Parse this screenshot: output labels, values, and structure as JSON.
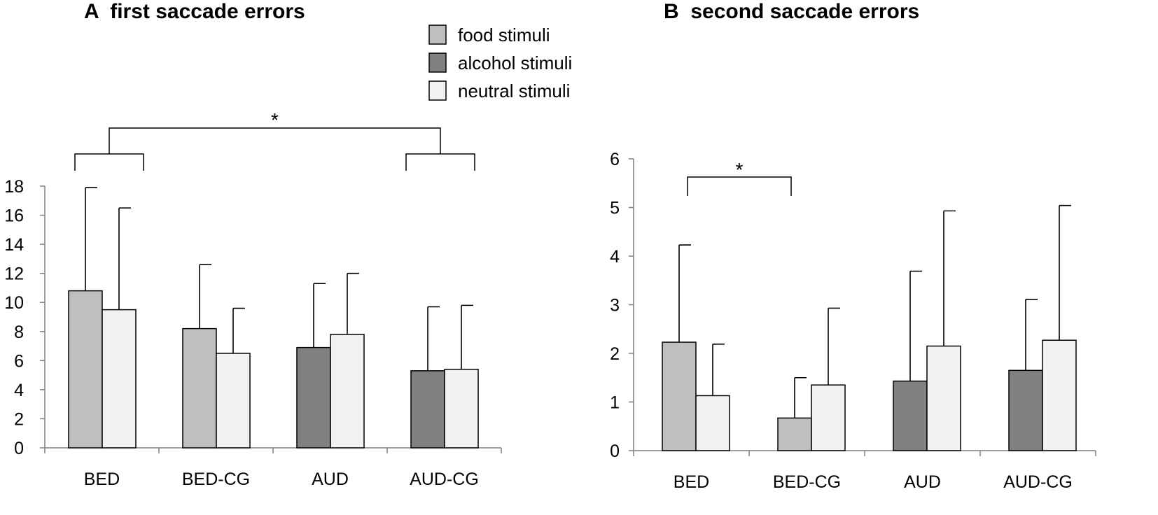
{
  "colors": {
    "food": "#bfbfbf",
    "alcohol": "#808080",
    "neutral": "#f2f2f2"
  },
  "legend": [
    {
      "key": "food",
      "label": "food stimuli"
    },
    {
      "key": "alcohol",
      "label": "alcohol stimuli"
    },
    {
      "key": "neutral",
      "label": "neutral stimuli"
    }
  ],
  "chart_data": [
    {
      "id": "A",
      "type": "bar",
      "title": "A  first saccade errors",
      "categories": [
        "BED",
        "BED-CG",
        "AUD",
        "AUD-CG"
      ],
      "ylim": [
        0,
        18
      ],
      "yticks": [
        0,
        2,
        4,
        6,
        8,
        10,
        12,
        14,
        16,
        18
      ],
      "groups": [
        {
          "category": "BED",
          "bars": [
            {
              "kind": "food",
              "value": 10.8,
              "err": 7.1
            },
            {
              "kind": "neutral",
              "value": 9.5,
              "err": 7.0
            }
          ]
        },
        {
          "category": "BED-CG",
          "bars": [
            {
              "kind": "food",
              "value": 8.2,
              "err": 4.4
            },
            {
              "kind": "neutral",
              "value": 6.5,
              "err": 3.1
            }
          ]
        },
        {
          "category": "AUD",
          "bars": [
            {
              "kind": "alcohol",
              "value": 6.9,
              "err": 4.4
            },
            {
              "kind": "neutral",
              "value": 7.8,
              "err": 4.2
            }
          ]
        },
        {
          "category": "AUD-CG",
          "bars": [
            {
              "kind": "alcohol",
              "value": 5.3,
              "err": 4.4
            },
            {
              "kind": "neutral",
              "value": 5.4,
              "err": 4.4
            }
          ]
        }
      ],
      "significance": {
        "label": "*",
        "between": [
          "BED",
          "AUD-CG"
        ]
      }
    },
    {
      "id": "B",
      "type": "bar",
      "title": "B  second saccade errors",
      "categories": [
        "BED",
        "BED-CG",
        "AUD",
        "AUD-CG"
      ],
      "ylim": [
        0,
        6
      ],
      "yticks": [
        0,
        1,
        2,
        3,
        4,
        5,
        6
      ],
      "groups": [
        {
          "category": "BED",
          "bars": [
            {
              "kind": "food",
              "value": 2.23,
              "err": 2.0
            },
            {
              "kind": "neutral",
              "value": 1.13,
              "err": 1.06
            }
          ]
        },
        {
          "category": "BED-CG",
          "bars": [
            {
              "kind": "food",
              "value": 0.67,
              "err": 0.83
            },
            {
              "kind": "neutral",
              "value": 1.35,
              "err": 1.58
            }
          ]
        },
        {
          "category": "AUD",
          "bars": [
            {
              "kind": "alcohol",
              "value": 1.43,
              "err": 2.26
            },
            {
              "kind": "neutral",
              "value": 2.15,
              "err": 2.78
            }
          ]
        },
        {
          "category": "AUD-CG",
          "bars": [
            {
              "kind": "alcohol",
              "value": 1.65,
              "err": 1.46
            },
            {
              "kind": "neutral",
              "value": 2.27,
              "err": 2.77
            }
          ]
        }
      ],
      "significance": {
        "label": "*",
        "between": [
          "BED",
          "BED-CG"
        ]
      }
    }
  ]
}
